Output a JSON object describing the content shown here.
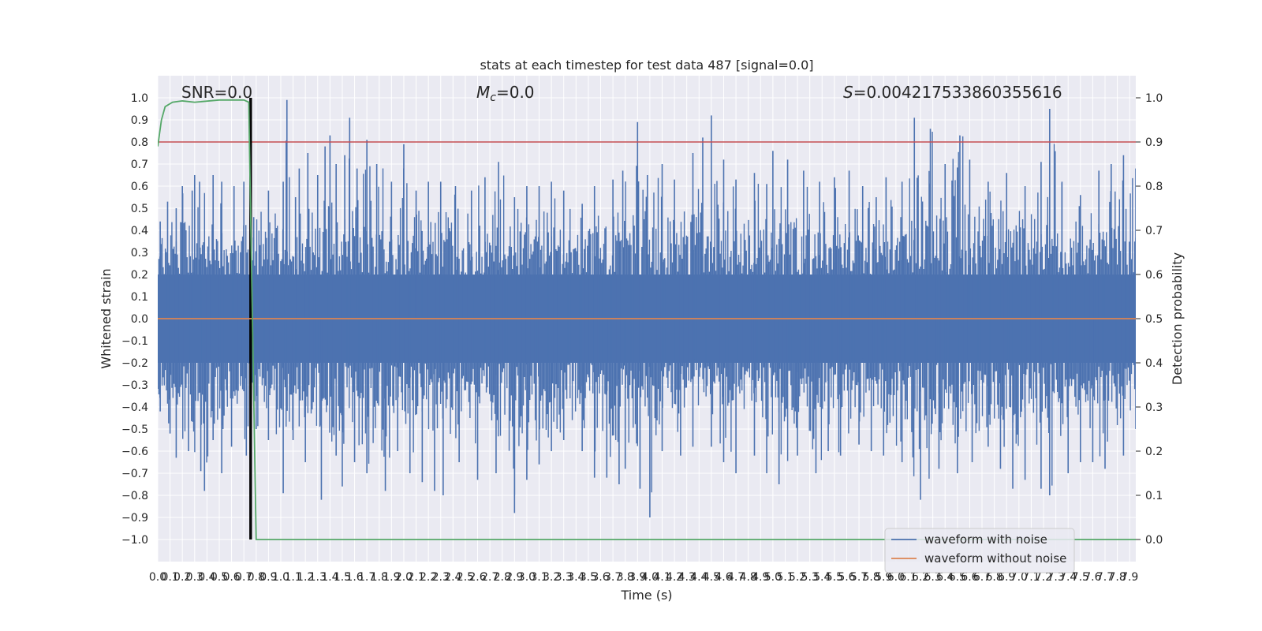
{
  "chart_data": {
    "type": "line",
    "title": "stats at each timestep for test data 487 [signal=0.0]",
    "xlabel": "Time (s)",
    "ylabel": "Whitened strain",
    "ylabel_right": "Detection probability",
    "xlim": [
      0.0,
      7.95
    ],
    "ylim": [
      -1.1,
      1.1
    ],
    "ylim_right": [
      -0.05,
      1.05
    ],
    "grid": true,
    "x_ticks": [
      "0.0",
      "0.1",
      "0.2",
      "0.3",
      "0.4",
      "0.5",
      "0.6",
      "0.7",
      "0.8",
      "0.9",
      "1.0",
      "1.1",
      "1.2",
      "1.3",
      "1.4",
      "1.5",
      "1.6",
      "1.7",
      "1.8",
      "1.9",
      "2.0",
      "2.1",
      "2.2",
      "2.3",
      "2.4",
      "2.5",
      "2.6",
      "2.7",
      "2.8",
      "2.9",
      "3.0",
      "3.1",
      "3.2",
      "3.3",
      "3.4",
      "3.5",
      "3.6",
      "3.7",
      "3.8",
      "3.9",
      "4.0",
      "4.1",
      "4.2",
      "4.3",
      "4.4",
      "4.5",
      "4.6",
      "4.7",
      "4.8",
      "4.9",
      "5.0",
      "5.1",
      "5.2",
      "5.3",
      "5.4",
      "5.5",
      "5.6",
      "5.7",
      "5.8",
      "5.9",
      "6.0",
      "6.1",
      "6.2",
      "6.3",
      "6.4",
      "6.5",
      "6.6",
      "6.7",
      "6.8",
      "6.9",
      "7.0",
      "7.1",
      "7.2",
      "7.3",
      "7.4",
      "7.5",
      "7.6",
      "7.7",
      "7.8",
      "7.9"
    ],
    "y_ticks_left": [
      "1.0",
      "0.9",
      "0.8",
      "0.7",
      "0.6",
      "0.5",
      "0.4",
      "0.3",
      "0.2",
      "0.1",
      "0.0",
      "−0.1",
      "−0.2",
      "−0.3",
      "−0.4",
      "−0.5",
      "−0.6",
      "−0.7",
      "−0.8",
      "−0.9",
      "−1.0"
    ],
    "y_ticks_right": [
      "1.0",
      "0.9",
      "0.8",
      "0.7",
      "0.6",
      "0.5",
      "0.4",
      "0.3",
      "0.2",
      "0.1",
      "0.0"
    ],
    "annotations": {
      "snr": "SNR=0.0",
      "mc_symbol": "M",
      "mc_sub": "c",
      "mc_value": "=0.0",
      "s_symbol": "S",
      "s_value": "=0.004217533860355616"
    },
    "legend": {
      "placement": "lower right",
      "entries": [
        {
          "label": "waveform with noise",
          "color": "#4c72b0"
        },
        {
          "label": "waveform without noise",
          "color": "#dd8452"
        }
      ]
    },
    "noise_envelope": {
      "color": "#4c72b0",
      "dense_band": 0.2,
      "upper_spikes": [
        [
          0.02,
          0.44
        ],
        [
          0.08,
          0.53
        ],
        [
          0.15,
          0.5
        ],
        [
          0.2,
          0.6
        ],
        [
          0.28,
          0.58
        ],
        [
          0.3,
          0.65
        ],
        [
          0.34,
          0.62
        ],
        [
          0.45,
          0.65
        ],
        [
          0.52,
          0.62
        ],
        [
          0.62,
          0.6
        ],
        [
          0.7,
          0.62
        ],
        [
          0.78,
          0.46
        ],
        [
          0.9,
          0.58
        ],
        [
          1.02,
          0.62
        ],
        [
          1.05,
          0.99
        ],
        [
          1.12,
          0.55
        ],
        [
          1.15,
          0.68
        ],
        [
          1.22,
          0.75
        ],
        [
          1.3,
          0.65
        ],
        [
          1.36,
          0.78
        ],
        [
          1.4,
          0.83
        ],
        [
          1.45,
          0.7
        ],
        [
          1.52,
          0.74
        ],
        [
          1.56,
          0.91
        ],
        [
          1.62,
          0.68
        ],
        [
          1.7,
          0.81
        ],
        [
          1.78,
          0.7
        ],
        [
          1.9,
          0.62
        ],
        [
          2.0,
          0.79
        ],
        [
          2.1,
          0.58
        ],
        [
          2.2,
          0.62
        ],
        [
          2.3,
          0.62
        ],
        [
          2.42,
          0.6
        ],
        [
          2.55,
          0.58
        ],
        [
          2.66,
          0.64
        ],
        [
          2.77,
          0.71
        ],
        [
          2.9,
          0.55
        ],
        [
          3.0,
          0.6
        ],
        [
          3.1,
          0.6
        ],
        [
          3.2,
          0.62
        ],
        [
          3.3,
          0.58
        ],
        [
          3.45,
          0.52
        ],
        [
          3.55,
          0.6
        ],
        [
          3.7,
          0.63
        ],
        [
          3.78,
          0.67
        ],
        [
          3.9,
          0.89
        ],
        [
          3.98,
          0.65
        ],
        [
          4.1,
          0.7
        ],
        [
          4.2,
          0.63
        ],
        [
          4.35,
          0.75
        ],
        [
          4.43,
          0.82
        ],
        [
          4.5,
          0.92
        ],
        [
          4.6,
          0.72
        ],
        [
          4.7,
          0.63
        ],
        [
          4.85,
          0.66
        ],
        [
          4.95,
          0.61
        ],
        [
          5.0,
          0.76
        ],
        [
          5.12,
          0.72
        ],
        [
          5.25,
          0.67
        ],
        [
          5.38,
          0.62
        ],
        [
          5.5,
          0.64
        ],
        [
          5.62,
          0.67
        ],
        [
          5.73,
          0.6
        ],
        [
          5.84,
          0.55
        ],
        [
          5.92,
          0.64
        ],
        [
          6.05,
          0.62
        ],
        [
          6.15,
          0.91
        ],
        [
          6.28,
          0.86
        ],
        [
          6.4,
          0.7
        ],
        [
          6.52,
          0.83
        ],
        [
          6.6,
          0.72
        ],
        [
          6.75,
          0.62
        ],
        [
          6.9,
          0.66
        ],
        [
          7.05,
          0.6
        ],
        [
          7.18,
          0.71
        ],
        [
          7.25,
          0.95
        ],
        [
          7.35,
          0.62
        ],
        [
          7.5,
          0.56
        ],
        [
          7.65,
          0.67
        ],
        [
          7.75,
          0.7
        ],
        [
          7.85,
          0.74
        ],
        [
          7.95,
          0.68
        ]
      ],
      "lower_spikes": [
        [
          0.02,
          -0.42
        ],
        [
          0.1,
          -0.52
        ],
        [
          0.15,
          -0.63
        ],
        [
          0.25,
          -0.6
        ],
        [
          0.35,
          -0.69
        ],
        [
          0.38,
          -0.78
        ],
        [
          0.45,
          -0.55
        ],
        [
          0.52,
          -0.7
        ],
        [
          0.6,
          -0.58
        ],
        [
          0.72,
          -0.62
        ],
        [
          0.8,
          -0.5
        ],
        [
          0.9,
          -0.55
        ],
        [
          1.02,
          -0.79
        ],
        [
          1.1,
          -0.55
        ],
        [
          1.2,
          -0.65
        ],
        [
          1.33,
          -0.82
        ],
        [
          1.45,
          -0.62
        ],
        [
          1.5,
          -0.76
        ],
        [
          1.6,
          -0.65
        ],
        [
          1.7,
          -0.7
        ],
        [
          1.85,
          -0.78
        ],
        [
          1.95,
          -0.6
        ],
        [
          2.05,
          -0.7
        ],
        [
          2.15,
          -0.74
        ],
        [
          2.25,
          -0.78
        ],
        [
          2.32,
          -0.8
        ],
        [
          2.45,
          -0.65
        ],
        [
          2.6,
          -0.73
        ],
        [
          2.75,
          -0.7
        ],
        [
          2.9,
          -0.88
        ],
        [
          3.0,
          -0.73
        ],
        [
          3.1,
          -0.66
        ],
        [
          3.2,
          -0.6
        ],
        [
          3.3,
          -0.55
        ],
        [
          3.45,
          -0.6
        ],
        [
          3.55,
          -0.72
        ],
        [
          3.65,
          -0.72
        ],
        [
          3.75,
          -0.75
        ],
        [
          3.8,
          -0.68
        ],
        [
          3.92,
          -0.77
        ],
        [
          4.0,
          -0.9
        ],
        [
          4.1,
          -0.6
        ],
        [
          4.25,
          -0.62
        ],
        [
          4.35,
          -0.58
        ],
        [
          4.5,
          -0.58
        ],
        [
          4.6,
          -0.65
        ],
        [
          4.7,
          -0.7
        ],
        [
          4.85,
          -0.62
        ],
        [
          4.95,
          -0.7
        ],
        [
          5.05,
          -0.75
        ],
        [
          5.2,
          -0.62
        ],
        [
          5.35,
          -0.7
        ],
        [
          5.45,
          -0.6
        ],
        [
          5.55,
          -0.62
        ],
        [
          5.7,
          -0.57
        ],
        [
          5.8,
          -0.6
        ],
        [
          5.9,
          -0.62
        ],
        [
          6.05,
          -0.65
        ],
        [
          6.2,
          -0.82
        ],
        [
          6.35,
          -0.68
        ],
        [
          6.5,
          -0.7
        ],
        [
          6.62,
          -0.65
        ],
        [
          6.75,
          -0.58
        ],
        [
          6.85,
          -0.68
        ],
        [
          6.95,
          -0.77
        ],
        [
          7.05,
          -0.73
        ],
        [
          7.18,
          -0.77
        ],
        [
          7.25,
          -0.8
        ],
        [
          7.4,
          -0.7
        ],
        [
          7.5,
          -0.65
        ],
        [
          7.6,
          -0.65
        ],
        [
          7.7,
          -0.68
        ],
        [
          7.85,
          -0.62
        ],
        [
          7.95,
          -0.5
        ]
      ]
    },
    "series": [
      {
        "name": "waveform without noise",
        "axis": "left",
        "color": "#dd8452",
        "x": [
          0.0,
          7.95
        ],
        "y": [
          0.0,
          0.0
        ]
      },
      {
        "axis": "right",
        "color": "#55a868",
        "x": [
          0.0,
          0.03,
          0.06,
          0.12,
          0.2,
          0.3,
          0.5,
          0.6,
          0.7,
          0.74,
          0.745,
          0.8,
          0.82,
          1.0,
          2.0,
          3.0,
          3.3,
          3.4,
          4.0,
          5.0,
          6.0,
          7.0,
          7.95
        ],
        "y": [
          0.89,
          0.95,
          0.98,
          0.99,
          0.993,
          0.99,
          0.995,
          0.995,
          0.995,
          0.99,
          0.9,
          0.0,
          0.0,
          0.0,
          0.0,
          0.0,
          0.0,
          0.0,
          0.0,
          0.0,
          0.0,
          0.0,
          0.0
        ]
      }
    ],
    "reference_lines": [
      {
        "axis": "right",
        "orientation": "horizontal",
        "value": 0.9,
        "color": "#c44e52"
      },
      {
        "axis": "left",
        "orientation": "vertical",
        "value": 0.75,
        "color": "#000000"
      },
      {
        "axis": "left",
        "orientation": "vertical",
        "value": 0.76,
        "color": "#000000"
      }
    ]
  }
}
